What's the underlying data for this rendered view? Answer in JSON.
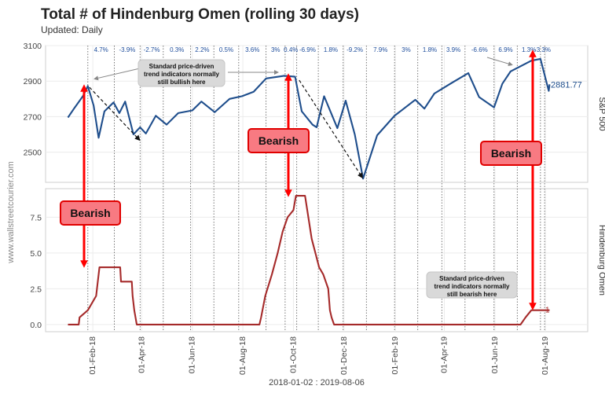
{
  "header": {
    "title": "Total # of Hindenburg Omen (rolling 30 days)",
    "subtitle": "Updated: Daily",
    "source": "www.wallstreetcourier.com",
    "footer": "2018-01-02 : 2019-08-06"
  },
  "colors": {
    "sp500": "#1f4e8c",
    "omen": "#a52a2a",
    "bearish_fill": "#f87a82",
    "bearish_border": "#e00000",
    "arrow": "#ff0000"
  },
  "chart_data": [
    {
      "type": "line",
      "panel": "top",
      "strip_label": "S&P 500",
      "y_ticks": [
        "2500",
        "2700",
        "2900",
        "3100"
      ],
      "ylim": [
        2330,
        3100
      ],
      "last_value_label": "2881.77",
      "series": [
        {
          "x": [
            "2018-01-02",
            "2018-01-10",
            "2018-01-20",
            "2018-01-26",
            "2018-02-02",
            "2018-02-08",
            "2018-02-15",
            "2018-02-26",
            "2018-03-05",
            "2018-03-12",
            "2018-03-22",
            "2018-03-30",
            "2018-04-06",
            "2018-04-18",
            "2018-05-01",
            "2018-05-15",
            "2018-06-01",
            "2018-06-12",
            "2018-06-28",
            "2018-07-16",
            "2018-07-31",
            "2018-08-14",
            "2018-08-29",
            "2018-09-20",
            "2018-10-03",
            "2018-10-11",
            "2018-10-24",
            "2018-10-29",
            "2018-11-07",
            "2018-11-23",
            "2018-12-03",
            "2018-12-14",
            "2018-12-24",
            "2019-01-10",
            "2019-01-31",
            "2019-02-25",
            "2019-03-08",
            "2019-03-20",
            "2019-04-10",
            "2019-04-30",
            "2019-05-13",
            "2019-05-31",
            "2019-06-10",
            "2019-06-20",
            "2019-07-15",
            "2019-07-26",
            "2019-08-05",
            "2019-08-06"
          ],
          "values": [
            2695,
            2750,
            2815,
            2872,
            2762,
            2581,
            2730,
            2780,
            2720,
            2785,
            2600,
            2640,
            2605,
            2705,
            2655,
            2720,
            2735,
            2785,
            2725,
            2800,
            2815,
            2840,
            2915,
            2930,
            2925,
            2730,
            2655,
            2640,
            2815,
            2635,
            2790,
            2600,
            2351,
            2595,
            2705,
            2795,
            2745,
            2830,
            2890,
            2945,
            2810,
            2752,
            2885,
            2955,
            3015,
            3025,
            2845,
            2881.77
          ]
        }
      ]
    },
    {
      "type": "line",
      "panel": "bottom",
      "strip_label": "Hindenburg Omen",
      "y_ticks": [
        "0.0",
        "2.5",
        "5.0",
        "7.5"
      ],
      "ylim": [
        -0.5,
        9.5
      ],
      "last_value_label": "1",
      "series": [
        {
          "x": [
            "2018-01-02",
            "2018-01-15",
            "2018-01-16",
            "2018-01-26",
            "2018-02-05",
            "2018-02-07",
            "2018-02-08",
            "2018-02-09",
            "2018-03-06",
            "2018-03-07",
            "2018-03-20",
            "2018-03-21",
            "2018-03-23",
            "2018-03-26",
            "2018-08-21",
            "2018-08-23",
            "2018-08-28",
            "2018-09-05",
            "2018-09-12",
            "2018-09-18",
            "2018-09-24",
            "2018-10-01",
            "2018-10-04",
            "2018-10-09",
            "2018-10-15",
            "2018-10-23",
            "2018-11-01",
            "2018-11-06",
            "2018-11-12",
            "2018-11-14",
            "2018-11-16",
            "2018-11-19",
            "2019-07-02",
            "2019-07-08",
            "2019-07-15",
            "2019-08-06"
          ],
          "values": [
            0,
            0,
            0.5,
            1,
            2,
            3,
            3.5,
            4,
            4,
            3,
            3,
            2,
            1,
            0,
            0,
            0.5,
            2,
            3.5,
            5,
            6.5,
            7.5,
            8,
            9,
            9,
            9,
            6,
            4,
            3.5,
            2.5,
            1,
            0.5,
            0,
            0,
            0.5,
            1,
            1
          ]
        }
      ]
    }
  ],
  "x_axis": {
    "ticks": [
      "01-Feb-18",
      "01-Apr-18",
      "01-Jun-18",
      "01-Aug-18",
      "01-Oct-18",
      "01-Dec-18",
      "01-Feb-19",
      "01-Apr-19",
      "01-Jun-19",
      "01-Aug-19"
    ],
    "tick_dates": [
      "2018-02-01",
      "2018-04-01",
      "2018-06-01",
      "2018-08-01",
      "2018-10-01",
      "2018-12-01",
      "2019-02-01",
      "2019-04-01",
      "2019-06-01",
      "2019-08-01"
    ]
  },
  "period_dividers": [
    "2018-01-26",
    "2018-02-27",
    "2018-03-30",
    "2018-04-27",
    "2018-05-30",
    "2018-06-27",
    "2018-07-27",
    "2018-08-29",
    "2018-09-21",
    "2018-10-05",
    "2018-10-31",
    "2018-11-30",
    "2018-12-28",
    "2019-01-31",
    "2019-02-28",
    "2019-03-29",
    "2019-04-26",
    "2019-05-31",
    "2019-06-28",
    "2019-07-26",
    "2019-07-31"
  ],
  "period_returns": [
    "4.7%",
    "-3.9%",
    "-2.7%",
    "0.3%",
    "2.2%",
    "0.5%",
    "3.6%",
    "3%",
    "0.4%",
    "-6.9%",
    "1.8%",
    "-9.2%",
    "7.9%",
    "3%",
    "1.8%",
    "3.9%",
    "-6.6%",
    "6.9%",
    "1.3%",
    "-3.3%"
  ],
  "annotations": {
    "bullish_note": [
      "Standard price-driven",
      "trend indicators normally",
      "still bullish here"
    ],
    "bearish_note": [
      "Standard price-driven",
      "trend indicators normally",
      "still bearish here"
    ],
    "bearish_label": "Bearish"
  }
}
